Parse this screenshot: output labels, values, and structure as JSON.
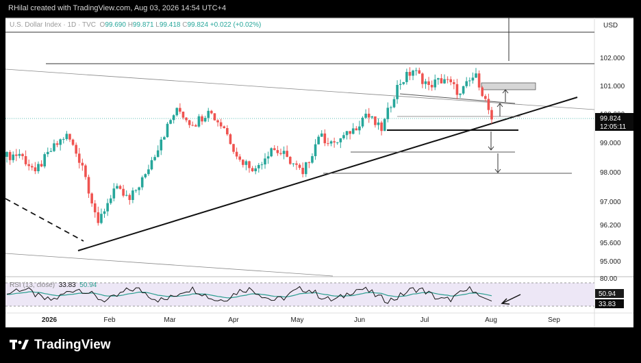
{
  "header": {
    "credit": "RHilal created with TradingView.com, Aug 03, 2026 14:54 UTC+4"
  },
  "symbol": {
    "name": "U.S. Dollar Index · 1D · TVC",
    "o_label": "O",
    "open": "99.690",
    "h_label": "H",
    "high": "99.871",
    "l_label": "L",
    "low": "99.418",
    "c_label": "C",
    "close": "99.824",
    "change": "+0.022 (+0.02%)"
  },
  "currency": "USD",
  "last_price": {
    "value": "99.824",
    "countdown": "12:05:11"
  },
  "rsi": {
    "label": "RSI (13, close)",
    "value1": "33.83",
    "value2": "50.94"
  },
  "brand": {
    "name": "TradingView"
  },
  "colors": {
    "up": "#26a69a",
    "down": "#ef5350",
    "background": "#ffffff",
    "frame": "#000000",
    "rsi_line": "#111111",
    "rsi_signal": "#2a9d8f"
  },
  "chart_data": {
    "type": "candlestick",
    "y_ticks": [
      "102.000",
      "101.000",
      "100.000",
      "99.000",
      "98.000",
      "97.000",
      "96.200",
      "95.600",
      "95.000"
    ],
    "ylim": [
      94.5,
      103.0
    ],
    "x_ticks": [
      "2026",
      "Feb",
      "Mar",
      "Apr",
      "May",
      "Jun",
      "Jul",
      "Aug",
      "Sep"
    ],
    "rsi_ticks": [
      "80.00"
    ],
    "rsi_range": [
      20,
      80
    ],
    "ohlc_approx": [
      {
        "date": "2026-01-02",
        "open": 98.5,
        "high": 98.9,
        "low": 98.2,
        "close": 98.6
      },
      {
        "date": "2026-01-09",
        "open": 98.6,
        "high": 98.8,
        "low": 97.9,
        "close": 98.0
      },
      {
        "date": "2026-01-16",
        "open": 98.0,
        "high": 98.9,
        "low": 97.9,
        "close": 98.7
      },
      {
        "date": "2026-01-23",
        "open": 98.7,
        "high": 99.5,
        "low": 98.5,
        "close": 99.3
      },
      {
        "date": "2026-01-30",
        "open": 99.3,
        "high": 99.5,
        "low": 98.0,
        "close": 98.2
      },
      {
        "date": "2026-02-06",
        "open": 98.2,
        "high": 98.3,
        "low": 95.6,
        "close": 96.2
      },
      {
        "date": "2026-02-13",
        "open": 96.2,
        "high": 97.6,
        "low": 95.8,
        "close": 97.4
      },
      {
        "date": "2026-02-20",
        "open": 97.4,
        "high": 98.0,
        "low": 96.6,
        "close": 97.0
      },
      {
        "date": "2026-02-27",
        "open": 97.0,
        "high": 98.1,
        "low": 96.8,
        "close": 97.9
      },
      {
        "date": "2026-03-06",
        "open": 97.9,
        "high": 99.4,
        "low": 97.8,
        "close": 99.1
      },
      {
        "date": "2026-03-13",
        "open": 99.1,
        "high": 100.4,
        "low": 98.9,
        "close": 100.2
      },
      {
        "date": "2026-03-20",
        "open": 100.2,
        "high": 100.5,
        "low": 99.2,
        "close": 99.6
      },
      {
        "date": "2026-03-27",
        "open": 99.6,
        "high": 100.5,
        "low": 99.3,
        "close": 100.1
      },
      {
        "date": "2026-04-03",
        "open": 100.1,
        "high": 100.5,
        "low": 99.2,
        "close": 99.5
      },
      {
        "date": "2026-04-10",
        "open": 99.5,
        "high": 99.6,
        "low": 98.1,
        "close": 98.4
      },
      {
        "date": "2026-04-17",
        "open": 98.4,
        "high": 98.7,
        "low": 97.8,
        "close": 98.1
      },
      {
        "date": "2026-04-24",
        "open": 98.1,
        "high": 99.0,
        "low": 97.9,
        "close": 98.8
      },
      {
        "date": "2026-05-01",
        "open": 98.8,
        "high": 99.0,
        "low": 98.2,
        "close": 98.5
      },
      {
        "date": "2026-05-08",
        "open": 98.5,
        "high": 98.6,
        "low": 97.7,
        "close": 97.9
      },
      {
        "date": "2026-05-15",
        "open": 97.9,
        "high": 99.4,
        "low": 97.8,
        "close": 99.2
      },
      {
        "date": "2026-05-22",
        "open": 99.2,
        "high": 99.5,
        "low": 98.8,
        "close": 99.0
      },
      {
        "date": "2026-05-29",
        "open": 99.0,
        "high": 99.4,
        "low": 98.8,
        "close": 99.3
      },
      {
        "date": "2026-06-05",
        "open": 99.3,
        "high": 100.2,
        "low": 99.0,
        "close": 100.0
      },
      {
        "date": "2026-06-12",
        "open": 100.0,
        "high": 100.2,
        "low": 99.2,
        "close": 99.4
      },
      {
        "date": "2026-06-19",
        "open": 99.4,
        "high": 101.2,
        "low": 99.3,
        "close": 101.0
      },
      {
        "date": "2026-06-26",
        "open": 101.0,
        "high": 101.8,
        "low": 100.8,
        "close": 101.5
      },
      {
        "date": "2026-07-03",
        "open": 101.5,
        "high": 101.6,
        "low": 100.8,
        "close": 101.0
      },
      {
        "date": "2026-07-10",
        "open": 101.0,
        "high": 101.4,
        "low": 100.6,
        "close": 101.2
      },
      {
        "date": "2026-07-17",
        "open": 101.2,
        "high": 101.3,
        "low": 100.5,
        "close": 100.7
      },
      {
        "date": "2026-07-24",
        "open": 100.7,
        "high": 101.6,
        "low": 100.6,
        "close": 101.4
      },
      {
        "date": "2026-07-31",
        "open": 101.4,
        "high": 101.6,
        "low": 99.4,
        "close": 99.8
      }
    ]
  }
}
